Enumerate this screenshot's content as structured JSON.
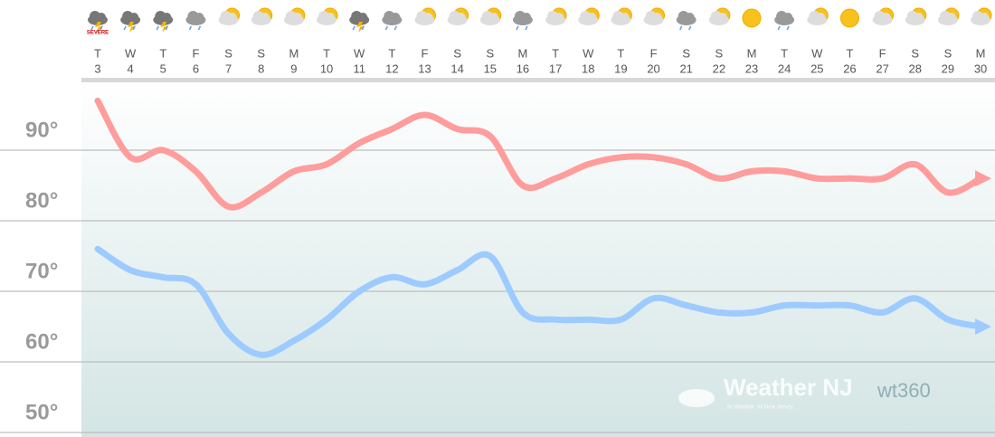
{
  "chart_data": {
    "type": "line",
    "categories": [
      {
        "day": "T",
        "date": 3
      },
      {
        "day": "W",
        "date": 4
      },
      {
        "day": "T",
        "date": 5
      },
      {
        "day": "F",
        "date": 6
      },
      {
        "day": "S",
        "date": 7
      },
      {
        "day": "S",
        "date": 8
      },
      {
        "day": "M",
        "date": 9
      },
      {
        "day": "T",
        "date": 10
      },
      {
        "day": "W",
        "date": 11
      },
      {
        "day": "T",
        "date": 12
      },
      {
        "day": "F",
        "date": 13
      },
      {
        "day": "S",
        "date": 14
      },
      {
        "day": "S",
        "date": 15
      },
      {
        "day": "M",
        "date": 16
      },
      {
        "day": "T",
        "date": 17
      },
      {
        "day": "W",
        "date": 18
      },
      {
        "day": "T",
        "date": 19
      },
      {
        "day": "F",
        "date": 20
      },
      {
        "day": "S",
        "date": 21
      },
      {
        "day": "S",
        "date": 22
      },
      {
        "day": "M",
        "date": 23
      },
      {
        "day": "T",
        "date": 24
      },
      {
        "day": "W",
        "date": 25
      },
      {
        "day": "T",
        "date": 26
      },
      {
        "day": "F",
        "date": 27
      },
      {
        "day": "S",
        "date": 28
      },
      {
        "day": "S",
        "date": 29
      },
      {
        "day": "M",
        "date": 30
      }
    ],
    "series": [
      {
        "color": "#ff9c9c",
        "values": [
          97,
          89,
          90,
          87,
          82,
          84,
          87,
          88,
          91,
          93,
          95,
          93,
          92,
          85,
          86,
          88,
          89,
          89,
          88,
          86,
          87,
          87,
          86,
          86,
          86,
          88,
          84,
          86
        ]
      },
      {
        "color": "#9dcbff",
        "values": [
          76,
          73,
          72,
          71,
          64,
          61,
          63,
          66,
          70,
          72,
          71,
          73,
          75,
          67,
          66,
          66,
          66,
          69,
          68,
          67,
          67,
          68,
          68,
          68,
          67,
          69,
          66,
          65
        ]
      }
    ],
    "ylim": [
      50,
      100
    ],
    "yticks": [
      {
        "value": 50,
        "label": "50°"
      },
      {
        "value": 60,
        "label": "60°"
      },
      {
        "value": 70,
        "label": "70°"
      },
      {
        "value": 80,
        "label": "80°"
      },
      {
        "value": 90,
        "label": "90°"
      }
    ],
    "grid": true,
    "annotations": [
      "SEVERE"
    ],
    "watermark": {
      "brand": "Weather NJ",
      "tagline": "All Weather. All New Jersey.",
      "logo": "wt360"
    }
  }
}
